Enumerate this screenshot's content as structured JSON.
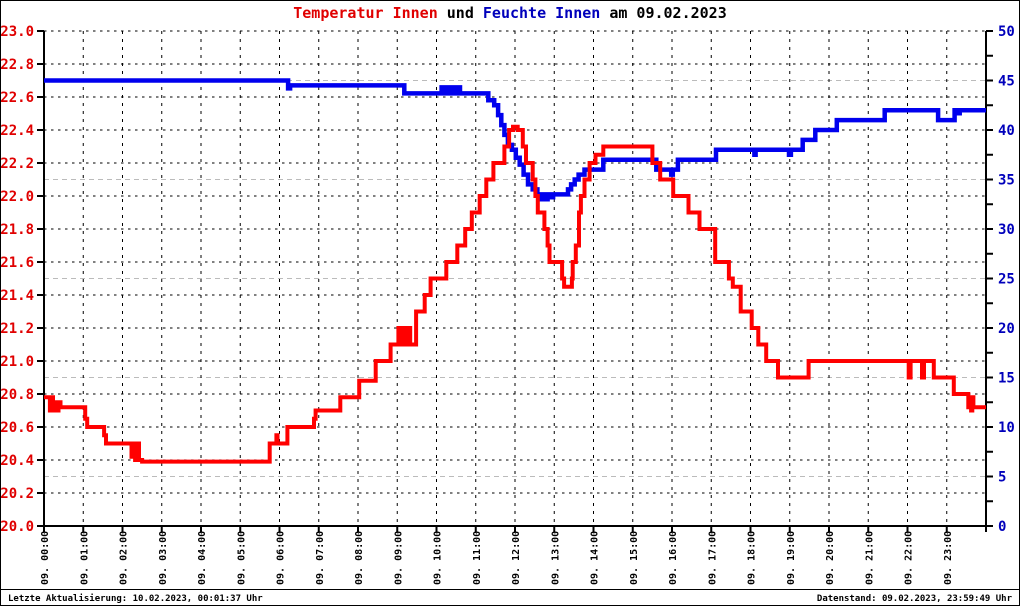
{
  "title": {
    "part_temp": "Temperatur Innen",
    "part_und": " und ",
    "part_feuchte": "Feuchte Innen",
    "part_date": " am 09.02.2023"
  },
  "footer": {
    "left": "Letzte Aktualisierung: 10.02.2023, 00:01:37 Uhr",
    "right": "Datenstand: 09.02.2023, 23:59:49 Uhr"
  },
  "colors": {
    "temperature_line": "#ff0000",
    "humidity_line": "#0000ee",
    "left_axis_labels": "#e00000",
    "right_axis_labels": "#0000bb",
    "grid_major": "#000000",
    "grid_minor_gray": "#bbbbbb"
  },
  "chart_data": {
    "type": "line",
    "title": "Temperatur Innen und Feuchte Innen am 09.02.2023",
    "grid": "on",
    "legend": "none",
    "x_axis": {
      "hours_start": 0,
      "hours_end": 24,
      "tick_every_hours": 1,
      "labels": [
        "09. 00:00",
        "09. 01:00",
        "09. 02:00",
        "09. 03:00",
        "09. 04:00",
        "09. 05:00",
        "09. 06:00",
        "09. 07:00",
        "09. 08:00",
        "09. 09:00",
        "09. 10:00",
        "09. 11:00",
        "09. 12:00",
        "09. 13:00",
        "09. 14:00",
        "09. 15:00",
        "09. 16:00",
        "09. 17:00",
        "09. 18:00",
        "09. 19:00",
        "09. 20:00",
        "09. 21:00",
        "09. 22:00",
        "09. 23:00"
      ]
    },
    "left_axis": {
      "min": 20.0,
      "max": 23.0,
      "tick_step": 0.2,
      "decimals": 1
    },
    "right_axis": {
      "min": 0,
      "max": 50,
      "label_step": 5,
      "minor_tick_step": 2.5,
      "gray_gridlines_at": [
        5,
        15,
        25,
        35,
        45
      ]
    },
    "series": [
      {
        "name": "Temperatur Innen",
        "axis": "left",
        "color": "#ff0000",
        "step": true,
        "points": [
          [
            0,
            20.78
          ],
          [
            0.13,
            20.78
          ],
          [
            0.15,
            20.7
          ],
          [
            0.2,
            20.78
          ],
          [
            0.23,
            20.7
          ],
          [
            0.27,
            20.75
          ],
          [
            0.32,
            20.7
          ],
          [
            0.37,
            20.75
          ],
          [
            0.42,
            20.72
          ],
          [
            1.02,
            20.72
          ],
          [
            1.05,
            20.65
          ],
          [
            1.1,
            20.6
          ],
          [
            1.5,
            20.6
          ],
          [
            1.53,
            20.55
          ],
          [
            1.58,
            20.5
          ],
          [
            2.2,
            20.5
          ],
          [
            2.23,
            20.42
          ],
          [
            2.27,
            20.5
          ],
          [
            2.32,
            20.4
          ],
          [
            2.37,
            20.5
          ],
          [
            2.42,
            20.4
          ],
          [
            2.5,
            20.39
          ],
          [
            5.72,
            20.39
          ],
          [
            5.75,
            20.5
          ],
          [
            5.9,
            20.5
          ],
          [
            5.92,
            20.55
          ],
          [
            5.95,
            20.5
          ],
          [
            6.18,
            20.5
          ],
          [
            6.2,
            20.6
          ],
          [
            6.85,
            20.6
          ],
          [
            6.88,
            20.65
          ],
          [
            6.92,
            20.7
          ],
          [
            7.5,
            20.7
          ],
          [
            7.55,
            20.78
          ],
          [
            7.98,
            20.78
          ],
          [
            8.03,
            20.88
          ],
          [
            8.4,
            20.88
          ],
          [
            8.45,
            21.0
          ],
          [
            8.78,
            21.0
          ],
          [
            8.83,
            21.1
          ],
          [
            9.0,
            21.1
          ],
          [
            9.03,
            21.2
          ],
          [
            9.08,
            21.1
          ],
          [
            9.13,
            21.2
          ],
          [
            9.18,
            21.1
          ],
          [
            9.22,
            21.2
          ],
          [
            9.27,
            21.1
          ],
          [
            9.3,
            21.2
          ],
          [
            9.33,
            21.1
          ],
          [
            9.45,
            21.1
          ],
          [
            9.48,
            21.3
          ],
          [
            9.67,
            21.3
          ],
          [
            9.7,
            21.4
          ],
          [
            9.82,
            21.4
          ],
          [
            9.85,
            21.5
          ],
          [
            10.22,
            21.5
          ],
          [
            10.25,
            21.6
          ],
          [
            10.5,
            21.6
          ],
          [
            10.53,
            21.7
          ],
          [
            10.7,
            21.7
          ],
          [
            10.73,
            21.8
          ],
          [
            10.88,
            21.8
          ],
          [
            10.9,
            21.9
          ],
          [
            11.07,
            21.9
          ],
          [
            11.1,
            22.0
          ],
          [
            11.25,
            22.0
          ],
          [
            11.27,
            22.1
          ],
          [
            11.43,
            22.1
          ],
          [
            11.45,
            22.2
          ],
          [
            11.72,
            22.2
          ],
          [
            11.73,
            22.3
          ],
          [
            11.82,
            22.3
          ],
          [
            11.85,
            22.4
          ],
          [
            11.93,
            22.4
          ],
          [
            11.95,
            22.42
          ],
          [
            12.05,
            22.42
          ],
          [
            12.07,
            22.4
          ],
          [
            12.18,
            22.4
          ],
          [
            12.2,
            22.3
          ],
          [
            12.27,
            22.3
          ],
          [
            12.28,
            22.2
          ],
          [
            12.43,
            22.2
          ],
          [
            12.45,
            22.1
          ],
          [
            12.5,
            22.1
          ],
          [
            12.52,
            22.0
          ],
          [
            12.55,
            22.0
          ],
          [
            12.58,
            21.9
          ],
          [
            12.73,
            21.9
          ],
          [
            12.75,
            21.8
          ],
          [
            12.8,
            21.8
          ],
          [
            12.83,
            21.7
          ],
          [
            12.86,
            21.7
          ],
          [
            12.88,
            21.6
          ],
          [
            13.17,
            21.6
          ],
          [
            13.2,
            21.5
          ],
          [
            13.25,
            21.45
          ],
          [
            13.42,
            21.45
          ],
          [
            13.45,
            21.5
          ],
          [
            13.47,
            21.6
          ],
          [
            13.53,
            21.6
          ],
          [
            13.55,
            21.7
          ],
          [
            13.6,
            21.7
          ],
          [
            13.63,
            21.9
          ],
          [
            13.67,
            21.9
          ],
          [
            13.68,
            22.0
          ],
          [
            13.75,
            22.0
          ],
          [
            13.77,
            22.1
          ],
          [
            13.87,
            22.1
          ],
          [
            13.9,
            22.2
          ],
          [
            14.03,
            22.2
          ],
          [
            14.05,
            22.25
          ],
          [
            14.22,
            22.25
          ],
          [
            14.25,
            22.3
          ],
          [
            15.47,
            22.3
          ],
          [
            15.5,
            22.2
          ],
          [
            15.68,
            22.2
          ],
          [
            15.7,
            22.1
          ],
          [
            16.0,
            22.1
          ],
          [
            16.03,
            22.0
          ],
          [
            16.4,
            22.0
          ],
          [
            16.42,
            21.9
          ],
          [
            16.67,
            21.9
          ],
          [
            16.7,
            21.8
          ],
          [
            17.07,
            21.8
          ],
          [
            17.1,
            21.6
          ],
          [
            17.43,
            21.6
          ],
          [
            17.45,
            21.5
          ],
          [
            17.55,
            21.45
          ],
          [
            17.72,
            21.45
          ],
          [
            17.75,
            21.3
          ],
          [
            18.0,
            21.3
          ],
          [
            18.03,
            21.2
          ],
          [
            18.18,
            21.2
          ],
          [
            18.2,
            21.1
          ],
          [
            18.37,
            21.1
          ],
          [
            18.4,
            21.0
          ],
          [
            18.67,
            21.0
          ],
          [
            18.7,
            20.9
          ],
          [
            19.45,
            20.9
          ],
          [
            19.48,
            21.0
          ],
          [
            22.02,
            21.0
          ],
          [
            22.03,
            20.9
          ],
          [
            22.08,
            21.0
          ],
          [
            22.35,
            21.0
          ],
          [
            22.37,
            20.9
          ],
          [
            22.42,
            21.0
          ],
          [
            22.63,
            21.0
          ],
          [
            22.67,
            20.9
          ],
          [
            23.15,
            20.9
          ],
          [
            23.18,
            20.8
          ],
          [
            23.53,
            20.8
          ],
          [
            23.55,
            20.72
          ],
          [
            23.58,
            20.78
          ],
          [
            23.62,
            20.7
          ],
          [
            23.65,
            20.78
          ],
          [
            23.68,
            20.72
          ],
          [
            24,
            20.72
          ]
        ]
      },
      {
        "name": "Feuchte Innen",
        "axis": "right",
        "color": "#0000ee",
        "step": true,
        "points": [
          [
            0,
            45
          ],
          [
            6.2,
            45
          ],
          [
            6.22,
            44.2
          ],
          [
            6.27,
            44.5
          ],
          [
            9.15,
            44.5
          ],
          [
            9.18,
            43.7
          ],
          [
            10.12,
            43.7
          ],
          [
            10.13,
            44.3
          ],
          [
            10.17,
            43.7
          ],
          [
            10.2,
            44.3
          ],
          [
            10.25,
            43.7
          ],
          [
            10.28,
            44.3
          ],
          [
            10.33,
            43.7
          ],
          [
            10.37,
            44.3
          ],
          [
            10.42,
            43.7
          ],
          [
            10.47,
            44.3
          ],
          [
            10.52,
            43.7
          ],
          [
            10.55,
            44.3
          ],
          [
            10.6,
            43.7
          ],
          [
            11.3,
            43.7
          ],
          [
            11.32,
            43
          ],
          [
            11.45,
            43
          ],
          [
            11.47,
            42.5
          ],
          [
            11.55,
            42.5
          ],
          [
            11.57,
            41.5
          ],
          [
            11.63,
            41.5
          ],
          [
            11.65,
            40.5
          ],
          [
            11.72,
            40.5
          ],
          [
            11.73,
            39.5
          ],
          [
            11.8,
            39.5
          ],
          [
            11.82,
            38.5
          ],
          [
            11.9,
            38.5
          ],
          [
            11.92,
            38
          ],
          [
            12.0,
            38
          ],
          [
            12.02,
            37.2
          ],
          [
            12.1,
            37.2
          ],
          [
            12.12,
            36.5
          ],
          [
            12.2,
            36.5
          ],
          [
            12.22,
            35.5
          ],
          [
            12.32,
            35.5
          ],
          [
            12.33,
            34.5
          ],
          [
            12.43,
            34.5
          ],
          [
            12.45,
            34
          ],
          [
            12.55,
            34
          ],
          [
            12.57,
            33.5
          ],
          [
            12.63,
            33.5
          ],
          [
            12.65,
            33
          ],
          [
            12.7,
            33.5
          ],
          [
            12.77,
            33.5
          ],
          [
            12.78,
            33
          ],
          [
            12.83,
            33.5
          ],
          [
            12.92,
            33.5
          ],
          [
            12.93,
            33.2
          ],
          [
            12.97,
            33.5
          ],
          [
            13.33,
            33.5
          ],
          [
            13.35,
            34
          ],
          [
            13.42,
            34
          ],
          [
            13.43,
            34.5
          ],
          [
            13.5,
            34.5
          ],
          [
            13.52,
            35
          ],
          [
            13.6,
            35
          ],
          [
            13.62,
            35.5
          ],
          [
            13.75,
            35.5
          ],
          [
            13.77,
            36
          ],
          [
            14.22,
            36
          ],
          [
            14.25,
            37
          ],
          [
            15.58,
            37
          ],
          [
            15.6,
            36
          ],
          [
            15.97,
            36
          ],
          [
            15.98,
            35.5
          ],
          [
            16.02,
            36
          ],
          [
            16.13,
            36
          ],
          [
            16.15,
            37
          ],
          [
            17.1,
            37
          ],
          [
            17.12,
            38
          ],
          [
            18.08,
            38
          ],
          [
            18.1,
            37.5
          ],
          [
            18.13,
            38
          ],
          [
            18.97,
            38
          ],
          [
            18.98,
            37.5
          ],
          [
            19.03,
            38
          ],
          [
            19.32,
            38
          ],
          [
            19.33,
            39
          ],
          [
            19.62,
            39
          ],
          [
            19.65,
            40
          ],
          [
            20.18,
            40
          ],
          [
            20.2,
            41
          ],
          [
            21.4,
            41
          ],
          [
            21.42,
            42
          ],
          [
            22.77,
            42
          ],
          [
            22.78,
            41
          ],
          [
            23.18,
            41
          ],
          [
            23.2,
            42
          ],
          [
            23.28,
            42
          ],
          [
            23.3,
            41.7
          ],
          [
            23.33,
            42
          ],
          [
            24,
            42
          ]
        ]
      }
    ]
  }
}
